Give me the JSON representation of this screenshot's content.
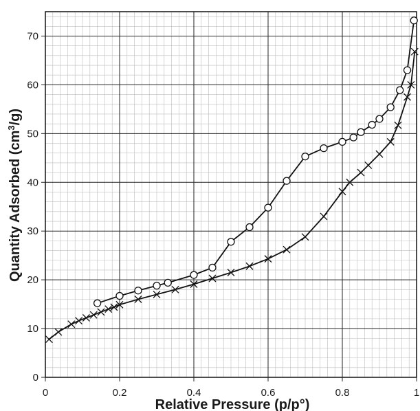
{
  "chart_data": {
    "type": "scatter",
    "title": "",
    "xlabel": "Relative Pressure (p/p°)",
    "ylabel_main": "Quantity Adsorbed (cm",
    "ylabel_sup": "3",
    "ylabel_tail": "/g)",
    "xlim": [
      0,
      1
    ],
    "ylim": [
      0,
      75
    ],
    "x_ticks": [
      0,
      0.2,
      0.4,
      0.6,
      0.8,
      1
    ],
    "x_tick_labels": [
      "0",
      "0.2",
      "0.4",
      "0.6",
      "0.8",
      "1"
    ],
    "y_ticks": [
      0,
      10,
      20,
      30,
      40,
      50,
      60,
      70
    ],
    "y_tick_labels": [
      "0",
      "10",
      "20",
      "30",
      "40",
      "50",
      "60",
      "70"
    ],
    "grid": true,
    "colors": {
      "line": "#111111",
      "major_grid": "#222222",
      "minor_grid": "#bdbdbd",
      "marker_fill": "#ffffff"
    },
    "series": [
      {
        "marker": "x",
        "points": [
          [
            0.01,
            7.8
          ],
          [
            0.035,
            9.3
          ],
          [
            0.07,
            10.9
          ],
          [
            0.09,
            11.6
          ],
          [
            0.11,
            12.2
          ],
          [
            0.13,
            12.8
          ],
          [
            0.15,
            13.4
          ],
          [
            0.17,
            14.0
          ],
          [
            0.185,
            14.4
          ],
          [
            0.2,
            14.9
          ],
          [
            0.25,
            16.0
          ],
          [
            0.3,
            17.0
          ],
          [
            0.35,
            18.0
          ],
          [
            0.4,
            19.1
          ],
          [
            0.45,
            20.3
          ],
          [
            0.5,
            21.5
          ],
          [
            0.55,
            22.8
          ],
          [
            0.6,
            24.3
          ],
          [
            0.65,
            26.2
          ],
          [
            0.7,
            28.8
          ],
          [
            0.75,
            33.0
          ],
          [
            0.8,
            38.1
          ],
          [
            0.82,
            40.0
          ],
          [
            0.85,
            42.0
          ],
          [
            0.87,
            43.5
          ],
          [
            0.9,
            45.8
          ],
          [
            0.93,
            48.3
          ],
          [
            0.95,
            51.7
          ],
          [
            0.975,
            57.5
          ],
          [
            0.985,
            60.0
          ],
          [
            0.995,
            66.8
          ]
        ]
      },
      {
        "marker": "o",
        "points": [
          [
            0.14,
            15.2
          ],
          [
            0.2,
            16.7
          ],
          [
            0.25,
            17.8
          ],
          [
            0.3,
            18.8
          ],
          [
            0.33,
            19.4
          ],
          [
            0.4,
            21.0
          ],
          [
            0.45,
            22.5
          ],
          [
            0.5,
            27.8
          ],
          [
            0.55,
            30.8
          ],
          [
            0.6,
            34.8
          ],
          [
            0.65,
            40.3
          ],
          [
            0.7,
            45.3
          ],
          [
            0.75,
            47.0
          ],
          [
            0.8,
            48.3
          ],
          [
            0.83,
            49.2
          ],
          [
            0.85,
            50.3
          ],
          [
            0.88,
            51.8
          ],
          [
            0.9,
            53.0
          ],
          [
            0.93,
            55.4
          ],
          [
            0.955,
            58.9
          ],
          [
            0.975,
            63.0
          ],
          [
            0.993,
            73.2
          ]
        ]
      }
    ]
  }
}
